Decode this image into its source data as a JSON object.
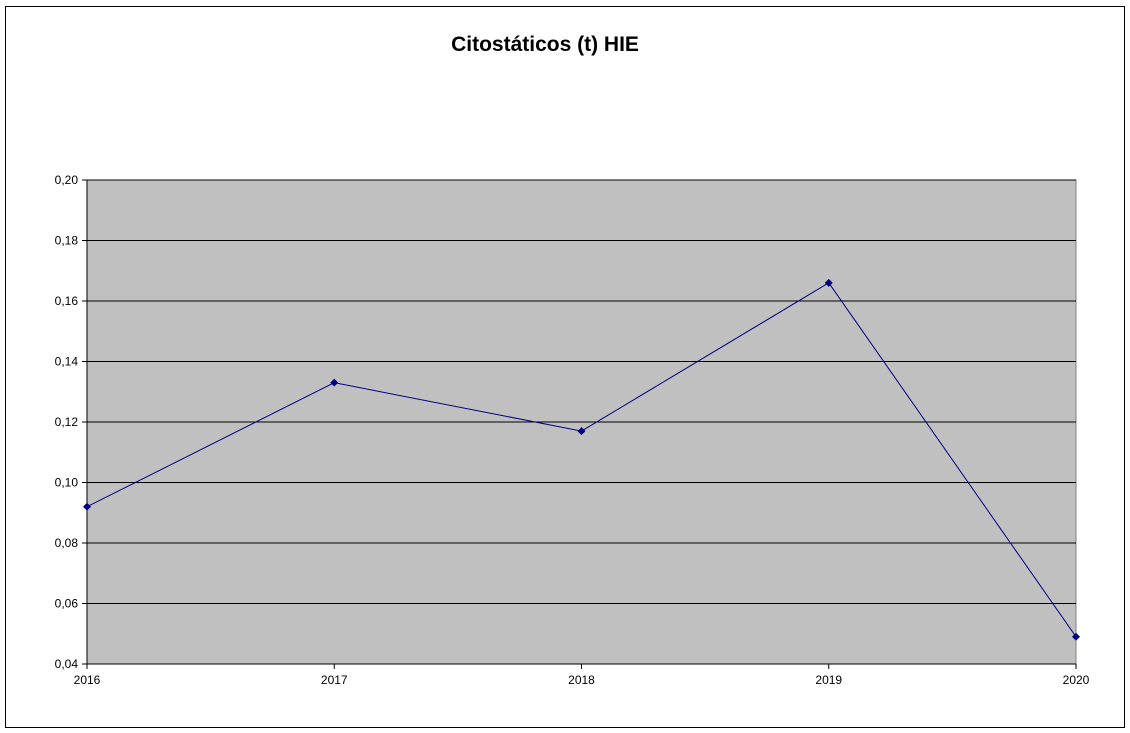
{
  "chart_data": {
    "type": "line",
    "title": "Citostáticos (t) HIE",
    "xlabel": "",
    "ylabel": "",
    "categories": [
      "2016",
      "2017",
      "2018",
      "2019",
      "2020"
    ],
    "series": [
      {
        "values": [
          0.092,
          0.133,
          0.117,
          0.166,
          0.049
        ]
      }
    ],
    "ylim": [
      0.04,
      0.2
    ],
    "yticks": [
      "0,04",
      "0,06",
      "0,08",
      "0,10",
      "0,12",
      "0,14",
      "0,16",
      "0,18",
      "0,20"
    ],
    "grid": true,
    "legend": "none",
    "colors": {
      "line": "#000080",
      "plot_background": "#c0c0c0",
      "grid": "#000000"
    }
  }
}
